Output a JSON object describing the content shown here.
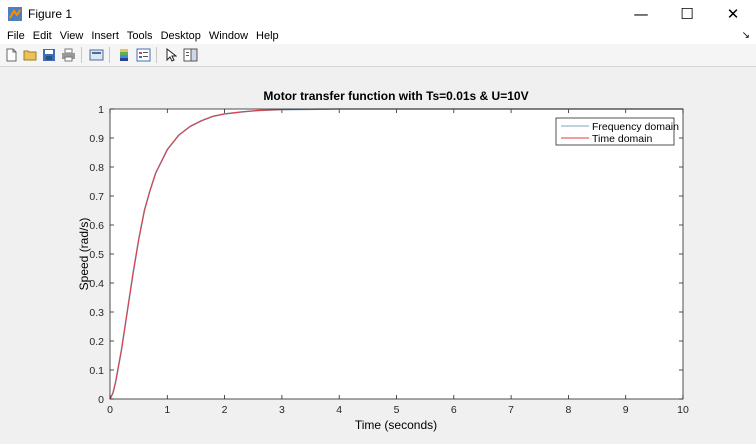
{
  "window": {
    "title": "Figure 1",
    "minimize": "—",
    "maximize": "☐",
    "close": "✕"
  },
  "menu": [
    "File",
    "Edit",
    "View",
    "Insert",
    "Tools",
    "Desktop",
    "Window",
    "Help"
  ],
  "menu_arrow": "↘",
  "toolbar_icons": [
    "new-figure-icon",
    "open-file-icon",
    "save-icon",
    "print-icon",
    "print-preview-icon",
    "colorbar-icon",
    "legend-icon",
    "pointer-icon",
    "property-editor-icon"
  ],
  "colors": {
    "frequency": "#7aa6c2",
    "time": "#e8393f",
    "axes": "#262626",
    "grid": "#dcdcdc"
  },
  "chart_data": {
    "type": "line",
    "title": "Motor transfer function with Ts=0.01s & U=10V",
    "xlabel": "Time (seconds)",
    "ylabel": "Speed (rad/s)",
    "xlim": [
      0,
      10
    ],
    "ylim": [
      0,
      1
    ],
    "xticks": [
      0,
      1,
      2,
      3,
      4,
      5,
      6,
      7,
      8,
      9,
      10
    ],
    "yticks": [
      0,
      0.1,
      0.2,
      0.3,
      0.4,
      0.5,
      0.6,
      0.7,
      0.8,
      0.9,
      1
    ],
    "xtick_labels": [
      "0",
      "1",
      "2",
      "3",
      "4",
      "5",
      "6",
      "7",
      "8",
      "9",
      "10"
    ],
    "ytick_labels": [
      "0",
      "0.1",
      "0.2",
      "0.3",
      "0.4",
      "0.5",
      "0.6",
      "0.7",
      "0.8",
      "0.9",
      "1"
    ],
    "legend_location": "top-right",
    "series": [
      {
        "name": "Frequency domain",
        "x": [
          0,
          0.05,
          0.1,
          0.2,
          0.3,
          0.4,
          0.5,
          0.6,
          0.7,
          0.8,
          1.0,
          1.2,
          1.4,
          1.6,
          1.8,
          2.0,
          2.3,
          2.6,
          3.0,
          3.5,
          4.0,
          5,
          6,
          7,
          8,
          9,
          10
        ],
        "y": [
          0,
          0.02,
          0.06,
          0.17,
          0.3,
          0.43,
          0.55,
          0.65,
          0.72,
          0.78,
          0.86,
          0.91,
          0.94,
          0.96,
          0.975,
          0.983,
          0.99,
          0.995,
          0.998,
          0.999,
          1,
          1,
          1,
          1,
          1,
          1,
          1
        ]
      },
      {
        "name": "Time domain",
        "x": [
          0,
          0.05,
          0.1,
          0.2,
          0.3,
          0.4,
          0.5,
          0.6,
          0.7,
          0.8,
          1.0,
          1.2,
          1.4,
          1.6,
          1.8,
          2.0,
          2.3,
          2.6,
          3.0,
          3.5,
          4.0,
          5,
          6,
          7,
          8,
          9,
          10
        ],
        "y": [
          0,
          0.02,
          0.06,
          0.17,
          0.3,
          0.43,
          0.55,
          0.65,
          0.72,
          0.78,
          0.86,
          0.91,
          0.94,
          0.96,
          0.975,
          0.983,
          0.99,
          0.995,
          0.998,
          0.999,
          1,
          1,
          1,
          1,
          1,
          1,
          1
        ]
      }
    ]
  }
}
